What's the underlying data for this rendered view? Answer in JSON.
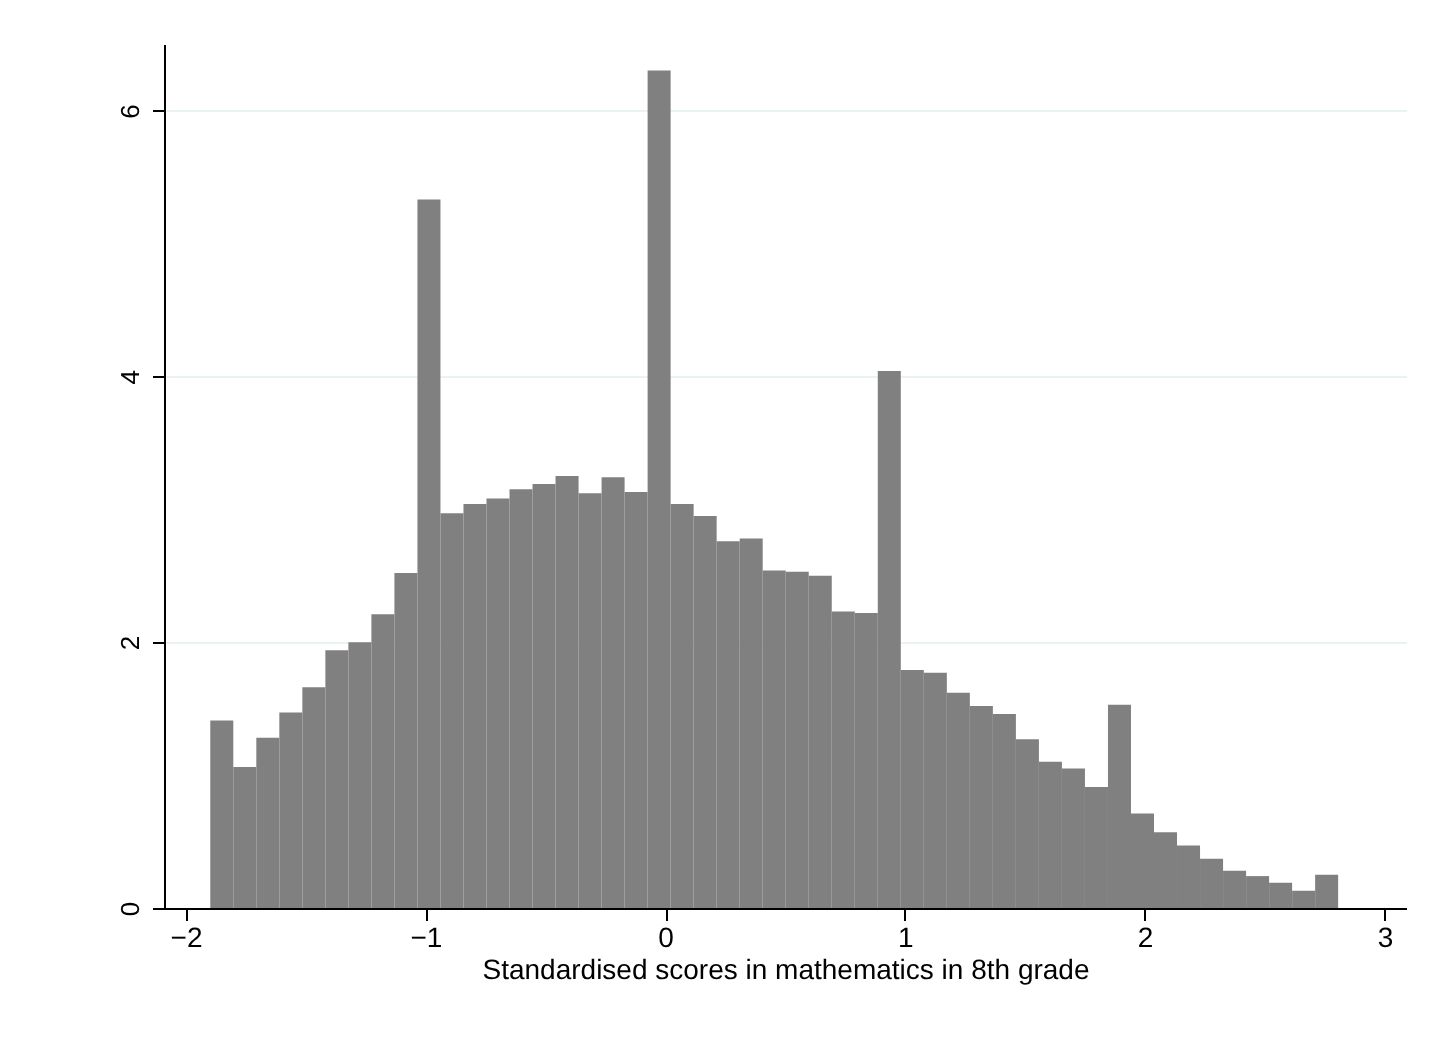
{
  "chart_data": {
    "type": "histogram",
    "xlabel": "Standardised scores in mathematics in 8th grade",
    "bins": [
      -1.897,
      -1.801,
      -1.705,
      -1.609,
      -1.513,
      -1.417,
      -1.321,
      -1.225,
      -1.129,
      -1.033,
      -0.937,
      -0.841,
      -0.745,
      -0.649,
      -0.553,
      -0.457,
      -0.361,
      -0.265,
      -0.169,
      -0.073,
      0.023,
      0.119,
      0.215,
      0.311,
      0.407,
      0.503,
      0.599,
      0.695,
      0.791,
      0.887,
      0.983,
      1.079,
      1.175,
      1.271,
      1.367,
      1.463,
      1.559,
      1.655,
      1.751,
      1.847,
      1.943,
      2.039,
      2.135,
      2.231,
      2.327,
      2.423,
      2.519,
      2.615,
      2.711,
      2.807
    ],
    "values": [
      1.41,
      1.06,
      1.28,
      1.47,
      1.66,
      1.94,
      2.0,
      2.21,
      2.52,
      5.33,
      2.97,
      3.04,
      3.08,
      3.15,
      3.19,
      3.25,
      3.12,
      3.24,
      3.13,
      6.3,
      3.04,
      2.95,
      2.76,
      2.78,
      2.54,
      2.53,
      2.5,
      2.23,
      2.22,
      4.04,
      1.79,
      1.77,
      1.62,
      1.52,
      1.46,
      1.27,
      1.1,
      1.05,
      0.91,
      1.53,
      0.71,
      0.57,
      0.47,
      0.37,
      0.28,
      0.24,
      0.19,
      0.13,
      0.25
    ],
    "color": "#808080",
    "xlim": [
      -2.09,
      3.09
    ],
    "ylim": [
      0,
      6.5
    ],
    "xticks": [
      -2,
      -1,
      0,
      1,
      2,
      3
    ],
    "yticks": [
      0,
      2,
      4,
      6
    ],
    "grid": "y"
  }
}
